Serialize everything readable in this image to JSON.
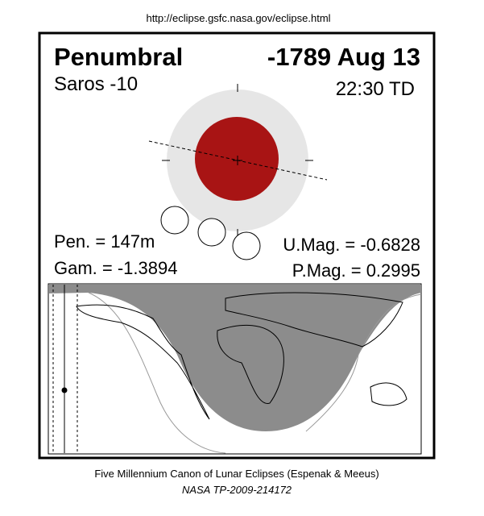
{
  "header": {
    "url": "http://eclipse.gsfc.nasa.gov/eclipse.html",
    "eclipse_type": "Penumbral",
    "date": "-1789 Aug 13",
    "saros": "Saros -10",
    "time": "22:30 TD"
  },
  "parameters": {
    "pen": "Pen. = 147m",
    "gam": "Gam. = -1.3894",
    "umag": "U.Mag. = -0.6828",
    "pmag": "P.Mag. = 0.2995"
  },
  "footer": {
    "canon": "Five Millennium Canon of Lunar Eclipses (Espenak & Meeus)",
    "reference": "NASA TP-2009-214172"
  }
}
